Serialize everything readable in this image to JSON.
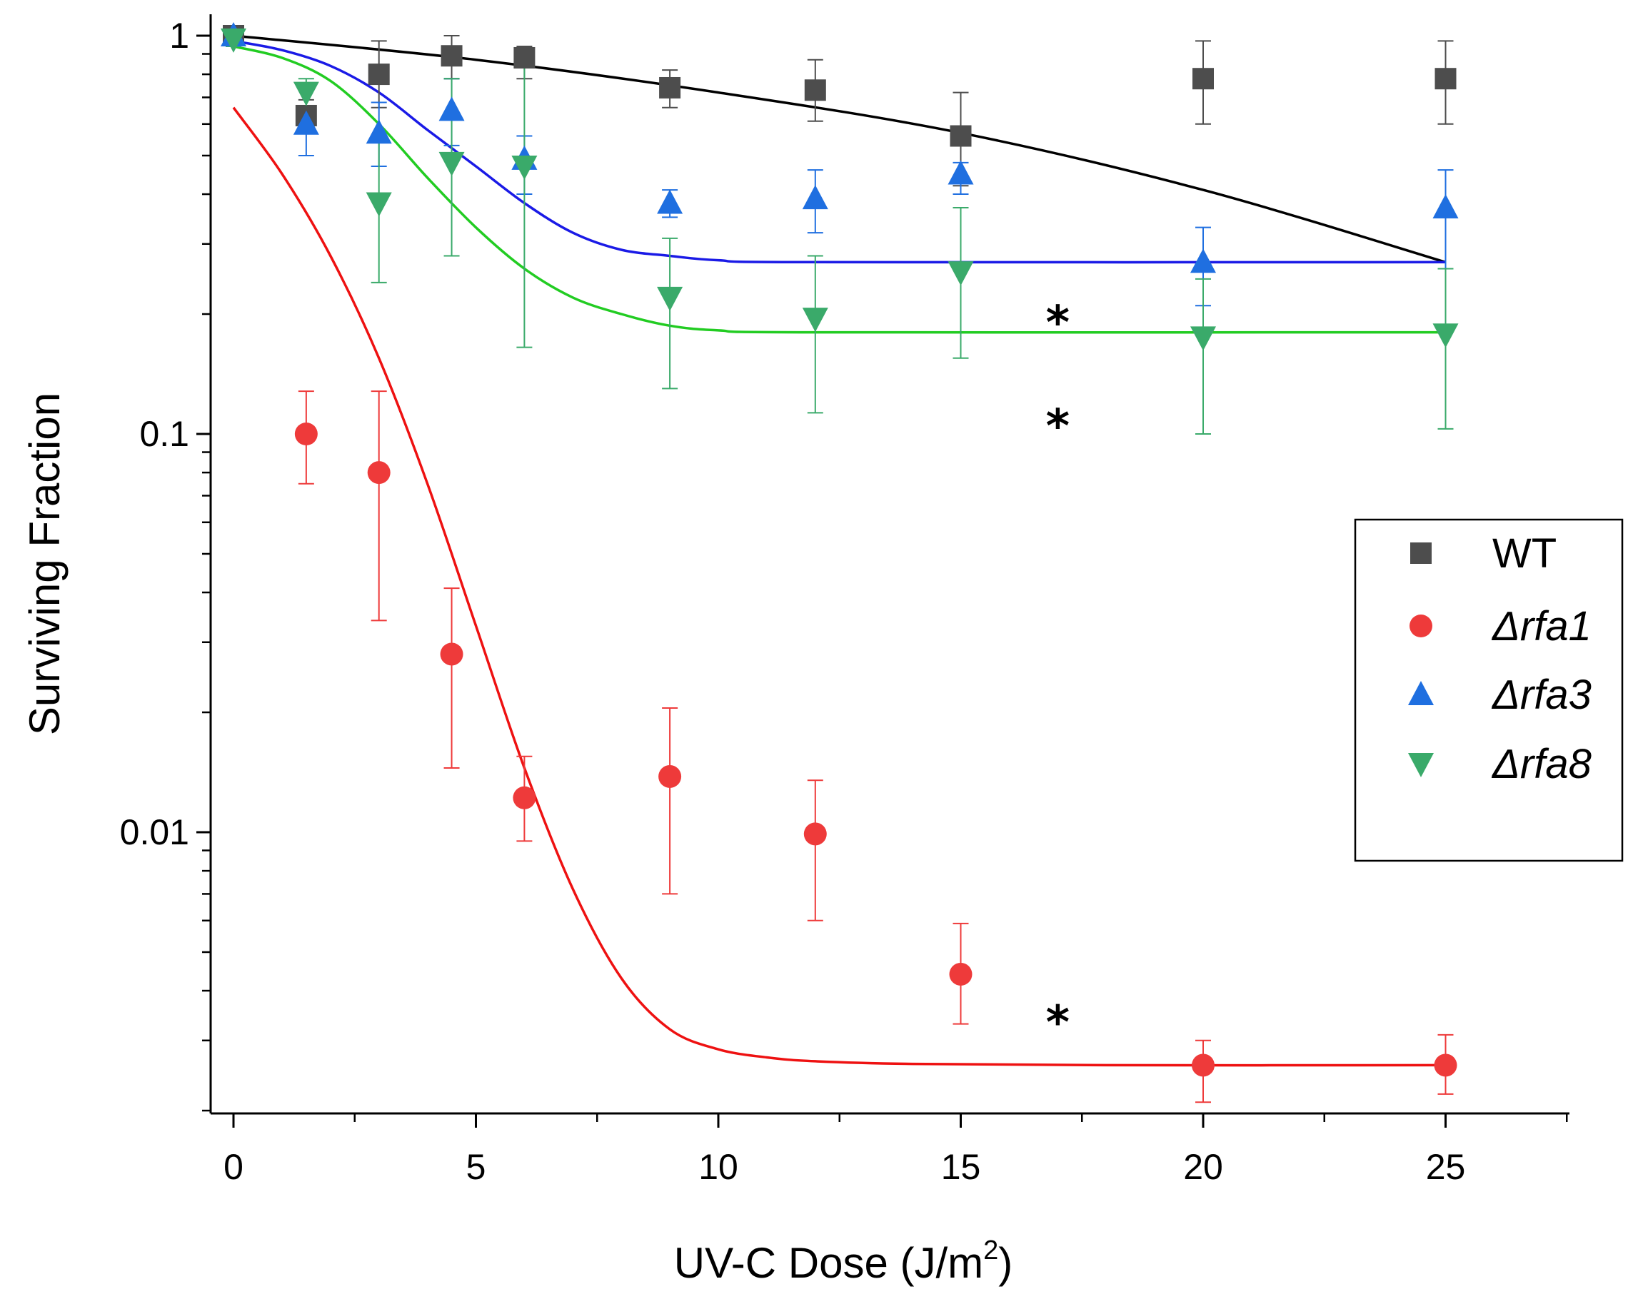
{
  "chart_data": {
    "type": "scatter",
    "title": "",
    "xlabel": "UV-C Dose (J/m",
    "xlabel_sup": "2",
    "xlabel_end": ")",
    "ylabel": "Surviving Fraction",
    "xlim": [
      -0.5,
      27.5
    ],
    "ylim": [
      0.0019,
      1.1
    ],
    "yscale": "log",
    "x_ticks": [
      0,
      5,
      10,
      15,
      20,
      25
    ],
    "x_tick_labels": [
      "0",
      "5",
      "10",
      "15",
      "20",
      "25"
    ],
    "y_ticks": [
      1,
      0.1,
      0.01
    ],
    "y_tick_labels": [
      "1",
      "0.1",
      "0.01"
    ],
    "legend_position": "right",
    "annotations": [
      {
        "text": "*",
        "x": 17,
        "y": 0.2
      },
      {
        "text": "*",
        "x": 17,
        "y": 0.11
      },
      {
        "text": "*",
        "x": 17,
        "y": 0.0035
      }
    ],
    "series": [
      {
        "name": "WT",
        "prefix": "",
        "italic": false,
        "marker": "square",
        "marker_color": "#4d4d4d",
        "line_color": "#000000",
        "points": [
          {
            "x": 0,
            "y": 1.0,
            "lo": 0.96,
            "hi": 1.04
          },
          {
            "x": 1.5,
            "y": 0.63,
            "lo": 0.58,
            "hi": 0.69
          },
          {
            "x": 3,
            "y": 0.8,
            "lo": 0.66,
            "hi": 0.97
          },
          {
            "x": 4.5,
            "y": 0.89,
            "lo": 0.78,
            "hi": 1.0
          },
          {
            "x": 6,
            "y": 0.88,
            "lo": 0.78,
            "hi": 0.94
          },
          {
            "x": 9,
            "y": 0.74,
            "lo": 0.66,
            "hi": 0.82
          },
          {
            "x": 12,
            "y": 0.73,
            "lo": 0.61,
            "hi": 0.87
          },
          {
            "x": 15,
            "y": 0.56,
            "lo": 0.42,
            "hi": 0.72
          },
          {
            "x": 20,
            "y": 0.78,
            "lo": 0.6,
            "hi": 0.97
          },
          {
            "x": 25,
            "y": 0.78,
            "lo": 0.6,
            "hi": 0.97
          }
        ],
        "fit": [
          [
            0,
            1.0
          ],
          [
            5,
            0.87
          ],
          [
            10,
            0.72
          ],
          [
            15,
            0.57
          ],
          [
            20,
            0.41
          ],
          [
            25,
            0.27
          ]
        ]
      },
      {
        "name": "rfa1",
        "prefix": "Δ",
        "italic": true,
        "marker": "circle",
        "marker_color": "#ee3a3a",
        "line_color": "#ee1111",
        "points": [
          {
            "x": 1.5,
            "y": 0.1,
            "lo": 0.075,
            "hi": 0.128
          },
          {
            "x": 3,
            "y": 0.08,
            "lo": 0.034,
            "hi": 0.128
          },
          {
            "x": 4.5,
            "y": 0.028,
            "lo": 0.0145,
            "hi": 0.041
          },
          {
            "x": 6,
            "y": 0.0122,
            "lo": 0.0095,
            "hi": 0.0155
          },
          {
            "x": 9,
            "y": 0.0138,
            "lo": 0.007,
            "hi": 0.0205
          },
          {
            "x": 12,
            "y": 0.0099,
            "lo": 0.006,
            "hi": 0.0135
          },
          {
            "x": 15,
            "y": 0.0044,
            "lo": 0.0033,
            "hi": 0.0059
          },
          {
            "x": 20,
            "y": 0.0026,
            "lo": 0.0021,
            "hi": 0.003
          },
          {
            "x": 25,
            "y": 0.0026,
            "lo": 0.0022,
            "hi": 0.0031
          }
        ],
        "fit": [
          [
            0,
            0.66
          ],
          [
            1,
            0.45
          ],
          [
            2,
            0.28
          ],
          [
            3,
            0.155
          ],
          [
            4,
            0.075
          ],
          [
            5,
            0.033
          ],
          [
            6,
            0.0145
          ],
          [
            7,
            0.0072
          ],
          [
            8,
            0.0043
          ],
          [
            9,
            0.0032
          ],
          [
            10,
            0.00285
          ],
          [
            11,
            0.00272
          ],
          [
            12,
            0.00266
          ],
          [
            14,
            0.00262
          ],
          [
            18,
            0.0026
          ],
          [
            25,
            0.0026
          ]
        ]
      },
      {
        "name": "rfa3",
        "prefix": "Δ",
        "italic": true,
        "marker": "triangle-up",
        "marker_color": "#1f6fe0",
        "line_color": "#1a1ae6",
        "points": [
          {
            "x": 0,
            "y": 1.0,
            "lo": 0.96,
            "hi": 1.04
          },
          {
            "x": 1.5,
            "y": 0.6,
            "lo": 0.5,
            "hi": 0.66
          },
          {
            "x": 3,
            "y": 0.57,
            "lo": 0.47,
            "hi": 0.68
          },
          {
            "x": 4.5,
            "y": 0.65,
            "lo": 0.53,
            "hi": 0.78
          },
          {
            "x": 6,
            "y": 0.49,
            "lo": 0.4,
            "hi": 0.56
          },
          {
            "x": 9,
            "y": 0.38,
            "lo": 0.35,
            "hi": 0.41
          },
          {
            "x": 12,
            "y": 0.39,
            "lo": 0.32,
            "hi": 0.46
          },
          {
            "x": 15,
            "y": 0.45,
            "lo": 0.4,
            "hi": 0.48
          },
          {
            "x": 20,
            "y": 0.27,
            "lo": 0.21,
            "hi": 0.33
          },
          {
            "x": 25,
            "y": 0.37,
            "lo": 0.26,
            "hi": 0.46
          }
        ],
        "fit": [
          [
            0,
            0.97
          ],
          [
            1,
            0.92
          ],
          [
            2,
            0.84
          ],
          [
            3,
            0.72
          ],
          [
            4,
            0.58
          ],
          [
            5,
            0.47
          ],
          [
            6,
            0.38
          ],
          [
            7,
            0.32
          ],
          [
            8,
            0.29
          ],
          [
            9,
            0.28
          ],
          [
            10,
            0.273
          ],
          [
            12,
            0.27
          ],
          [
            25,
            0.27
          ]
        ]
      },
      {
        "name": "rfa8",
        "prefix": "Δ",
        "italic": true,
        "marker": "triangle-down",
        "marker_color": "#3aaa6a",
        "line_color": "#22cc22",
        "points": [
          {
            "x": 0,
            "y": 0.98,
            "lo": 0.94,
            "hi": 1.02
          },
          {
            "x": 1.5,
            "y": 0.72,
            "lo": 0.66,
            "hi": 0.78
          },
          {
            "x": 3,
            "y": 0.38,
            "lo": 0.24,
            "hi": 0.55
          },
          {
            "x": 4.5,
            "y": 0.48,
            "lo": 0.28,
            "hi": 0.78
          },
          {
            "x": 6,
            "y": 0.47,
            "lo": 0.165,
            "hi": 0.9
          },
          {
            "x": 9,
            "y": 0.22,
            "lo": 0.13,
            "hi": 0.31
          },
          {
            "x": 12,
            "y": 0.195,
            "lo": 0.113,
            "hi": 0.28
          },
          {
            "x": 15,
            "y": 0.255,
            "lo": 0.155,
            "hi": 0.37
          },
          {
            "x": 20,
            "y": 0.175,
            "lo": 0.1,
            "hi": 0.245
          },
          {
            "x": 25,
            "y": 0.178,
            "lo": 0.103,
            "hi": 0.26
          }
        ],
        "fit": [
          [
            0,
            0.94
          ],
          [
            1,
            0.88
          ],
          [
            2,
            0.77
          ],
          [
            3,
            0.6
          ],
          [
            4,
            0.44
          ],
          [
            5,
            0.33
          ],
          [
            6,
            0.26
          ],
          [
            7,
            0.22
          ],
          [
            8,
            0.2
          ],
          [
            9,
            0.187
          ],
          [
            10,
            0.182
          ],
          [
            12,
            0.18
          ],
          [
            25,
            0.18
          ]
        ]
      }
    ]
  }
}
